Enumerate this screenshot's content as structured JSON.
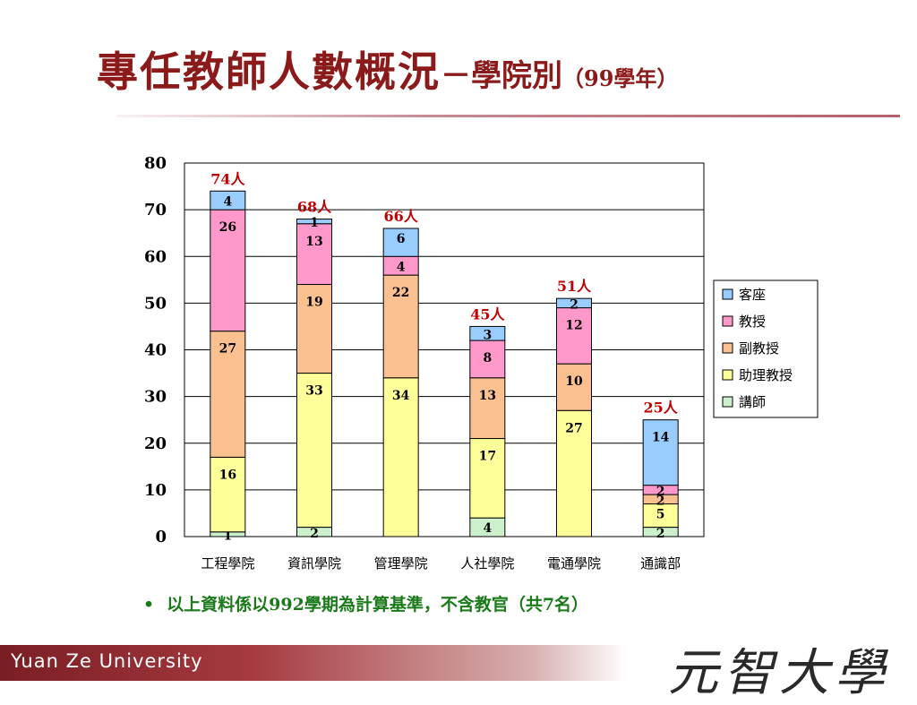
{
  "title": {
    "main": "專任教師人數概況",
    "dash": "－",
    "sub": "學院別",
    "year": "（99學年）"
  },
  "chart_data": {
    "type": "bar",
    "stacked": true,
    "categories": [
      "工程學院",
      "資訊學院",
      "管理學院",
      "人社學院",
      "電通學院",
      "通識部"
    ],
    "series": [
      {
        "name": "講師",
        "color": "#ccf0cc",
        "values": [
          1,
          2,
          0,
          4,
          0,
          2
        ]
      },
      {
        "name": "助理教授",
        "color": "#ffff99",
        "values": [
          16,
          33,
          34,
          17,
          27,
          5
        ]
      },
      {
        "name": "副教授",
        "color": "#fac090",
        "values": [
          27,
          19,
          22,
          13,
          10,
          2
        ]
      },
      {
        "name": "教授",
        "color": "#ff99cc",
        "values": [
          26,
          13,
          4,
          8,
          12,
          2
        ]
      },
      {
        "name": "客座",
        "color": "#99ccff",
        "values": [
          4,
          1,
          6,
          3,
          2,
          14
        ]
      }
    ],
    "totals": [
      "74人",
      "68人",
      "66人",
      "45人",
      "51人",
      "25人"
    ],
    "ylim": [
      0,
      80
    ],
    "yticks": [
      0,
      10,
      20,
      30,
      40,
      50,
      60,
      70,
      80
    ],
    "legend_position": "right",
    "grid": true
  },
  "note": "以上資料係以992學期為計算基準，不含教官（共7名）",
  "footer": {
    "university_en": "Yuan Ze University",
    "university_zh": "元智大學"
  }
}
